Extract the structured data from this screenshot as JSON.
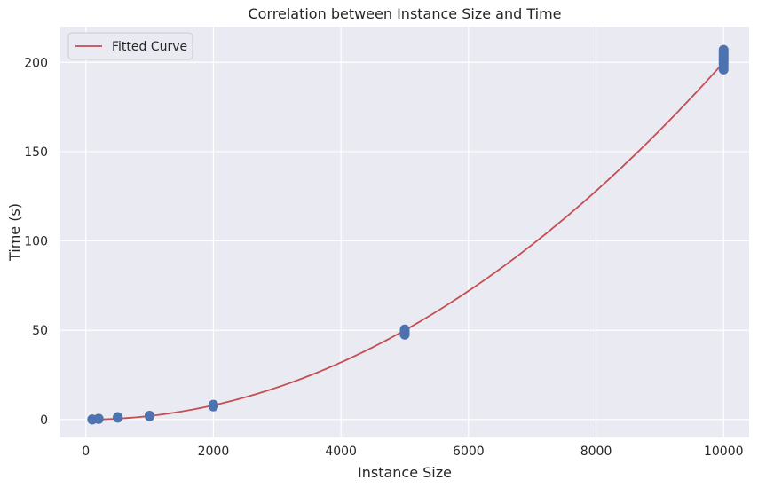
{
  "chart_data": {
    "type": "scatter",
    "title": "Correlation between Instance Size and Time",
    "xlabel": "Instance Size",
    "ylabel": "Time (s)",
    "xlim": [
      -400,
      10400
    ],
    "ylim": [
      -10,
      220
    ],
    "xticks": [
      0,
      2000,
      4000,
      6000,
      8000,
      10000
    ],
    "yticks": [
      0,
      50,
      100,
      150,
      200
    ],
    "grid": true,
    "legend_position": "top-left",
    "colors": {
      "background": "#eaeaf2",
      "grid": "#ffffff",
      "points": "#4c72b0",
      "curve": "#c44e52"
    },
    "series": [
      {
        "type": "scatter",
        "x": [
          100,
          100,
          100,
          200,
          200,
          200,
          500,
          500,
          500,
          1000,
          1000,
          1000,
          2000,
          2000,
          2000,
          5000,
          5000,
          5000,
          5000,
          5000,
          10000,
          10000,
          10000,
          10000,
          10000,
          10000,
          10000,
          10000,
          10000,
          10000,
          10000
        ],
        "y": [
          0.02,
          0.05,
          0.08,
          0.3,
          0.4,
          0.5,
          1.0,
          1.2,
          1.4,
          1.8,
          2.0,
          2.2,
          7.3,
          7.8,
          8.3,
          47.5,
          48.5,
          49.5,
          50.0,
          50.5,
          196,
          197.5,
          199,
          200,
          201,
          202,
          203,
          204,
          205,
          206,
          207
        ]
      },
      {
        "type": "line",
        "name": "Fitted Curve",
        "function": "y = 2e-6 * x^2",
        "x_range": [
          100,
          10000
        ]
      }
    ]
  }
}
